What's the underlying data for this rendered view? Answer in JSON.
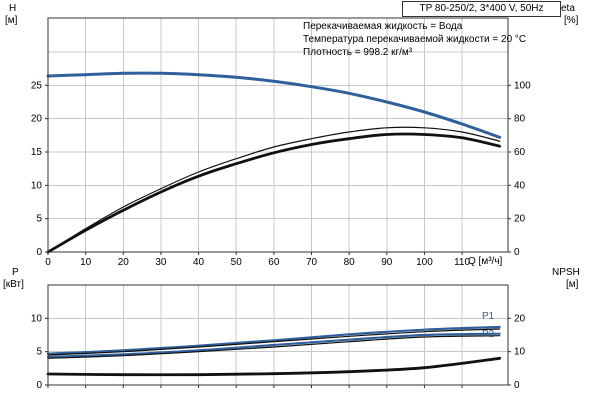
{
  "title_box": "TP 80-250/2, 3*400 V, 50Hz",
  "info_lines": [
    "Перекачиваемая жидкость = Вода",
    "Температура перекачиваемой жидкости = 20 °C",
    "Плотность = 998.2 кг/м³"
  ],
  "axis_labels": {
    "h": "H",
    "h_unit": "[м]",
    "eta": "eta",
    "eta_unit": "[%]",
    "p": "P",
    "p_unit": "[кВт]",
    "npsh": "NPSH",
    "npsh_unit": "[м]",
    "q": "Q [м³/ч]"
  },
  "curve_labels": {
    "p1": "P1",
    "p2": "P2"
  },
  "colors": {
    "blue": "#30609c",
    "black": "#111111",
    "grid": "#c8c8c8",
    "frame": "#333333"
  },
  "chart_data": [
    {
      "type": "line",
      "name": "head-efficiency-panel",
      "title": "TP 80-250/2, 3*400 V, 50Hz",
      "x_axis": {
        "label": "Q [м³/ч]",
        "ticks": [
          0,
          10,
          20,
          30,
          40,
          50,
          60,
          70,
          80,
          90,
          100,
          110
        ],
        "range": [
          0,
          122.2
        ]
      },
      "y_left": {
        "label": "H [м]",
        "ticks": [
          0,
          5,
          10,
          15,
          20,
          25
        ],
        "range": [
          0,
          35.1
        ],
        "gridlines": [
          5,
          10,
          15,
          20,
          25,
          30
        ]
      },
      "y_right": {
        "label": "eta [%]",
        "ticks": [
          0,
          20,
          40,
          60,
          80,
          100
        ],
        "range": [
          0,
          140.4
        ]
      },
      "series": [
        {
          "name": "H",
          "axis": "left",
          "color": "blue",
          "width": 3,
          "x": [
            0,
            10,
            20,
            30,
            40,
            50,
            60,
            70,
            80,
            90,
            100,
            110,
            120
          ],
          "y": [
            26.4,
            26.6,
            26.8,
            26.8,
            26.6,
            26.2,
            25.6,
            24.8,
            23.8,
            22.5,
            21.0,
            19.2,
            17.2
          ]
        },
        {
          "name": "eta1",
          "axis": "right",
          "color": "black",
          "width": 1.2,
          "x": [
            0,
            10,
            20,
            30,
            40,
            50,
            60,
            70,
            80,
            90,
            100,
            110,
            120
          ],
          "y": [
            0,
            14,
            27,
            38,
            48,
            56,
            63,
            68,
            72,
            74.5,
            74.5,
            72,
            66.5
          ]
        },
        {
          "name": "eta2",
          "axis": "right",
          "color": "black",
          "width": 2.8,
          "x": [
            0,
            10,
            20,
            30,
            40,
            50,
            60,
            70,
            80,
            90,
            100,
            110,
            120
          ],
          "y": [
            0,
            13,
            25,
            36,
            45.5,
            53,
            59.5,
            64.5,
            68,
            70.5,
            70.5,
            68.5,
            63.5
          ]
        }
      ]
    },
    {
      "type": "line",
      "name": "power-npsh-panel",
      "x_axis": {
        "label": "Q [м³/ч]",
        "ticks": [
          0,
          10,
          20,
          30,
          40,
          50,
          60,
          70,
          80,
          90,
          100,
          110
        ],
        "range": [
          0,
          122.2
        ]
      },
      "y_left": {
        "label": "P [кВт]",
        "ticks": [
          0,
          5,
          10
        ],
        "range": [
          0,
          15
        ],
        "gridlines": [
          5,
          10
        ]
      },
      "y_right": {
        "label": "NPSH [м]",
        "ticks": [
          0,
          10,
          20
        ],
        "range": [
          0,
          30
        ]
      },
      "series": [
        {
          "name": "P1",
          "axis": "left",
          "color": "blue",
          "width": 2.2,
          "x": [
            0,
            20,
            40,
            60,
            80,
            100,
            120
          ],
          "y": [
            4.7,
            5.2,
            5.9,
            6.7,
            7.6,
            8.3,
            8.7
          ]
        },
        {
          "name": "P1_black",
          "axis": "left",
          "color": "black",
          "width": 1.2,
          "x": [
            0,
            20,
            40,
            60,
            80,
            100,
            120
          ],
          "y": [
            4.5,
            5.0,
            5.7,
            6.5,
            7.3,
            8.0,
            8.4
          ]
        },
        {
          "name": "P2",
          "axis": "left",
          "color": "blue",
          "width": 2.2,
          "x": [
            0,
            20,
            40,
            60,
            80,
            100,
            120
          ],
          "y": [
            4.2,
            4.6,
            5.2,
            6.0,
            6.8,
            7.5,
            7.7
          ]
        },
        {
          "name": "P2_black",
          "axis": "left",
          "color": "black",
          "width": 1.2,
          "x": [
            0,
            20,
            40,
            60,
            80,
            100,
            120
          ],
          "y": [
            4.0,
            4.4,
            5.0,
            5.7,
            6.5,
            7.2,
            7.4
          ]
        },
        {
          "name": "NPSH",
          "axis": "right",
          "color": "black",
          "width": 2.8,
          "x": [
            0,
            20,
            40,
            60,
            80,
            100,
            120
          ],
          "y": [
            3.3,
            3.1,
            3.1,
            3.4,
            4.0,
            5.2,
            8.0
          ]
        }
      ]
    }
  ]
}
